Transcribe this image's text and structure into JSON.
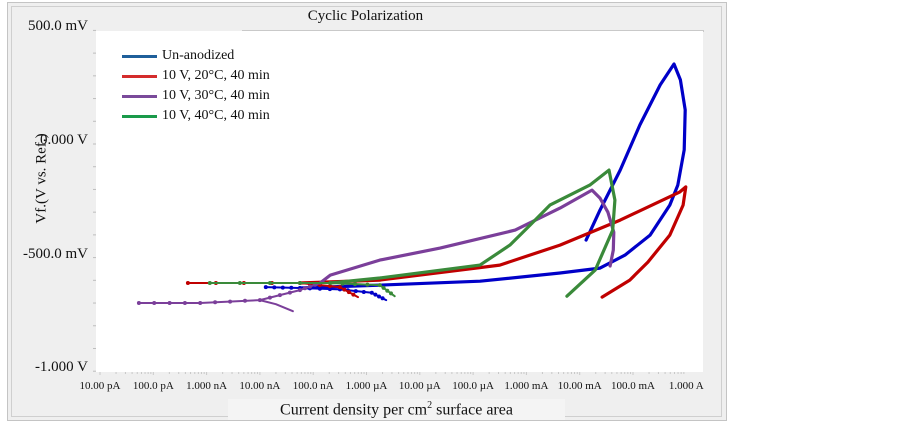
{
  "chart_data": {
    "type": "line",
    "title": "Cyclic Polarization",
    "xlabel": "Current density per cm² surface area",
    "xlabel_main": "Current density per cm",
    "xlabel_sup": "2",
    "xlabel_rest": " surface area",
    "ylabel": "Vf.(V vs. Ref.)",
    "xscale": "log",
    "x_units": "A (log10)",
    "y_units": "mV",
    "xlim_log10": [
      -11,
      0
    ],
    "ylim": [
      -1000,
      500
    ],
    "x_ticks": [
      {
        "log10": -11,
        "label": "10.00 pA"
      },
      {
        "log10": -10,
        "label": "100.0 pA"
      },
      {
        "log10": -9,
        "label": "1.000 nA"
      },
      {
        "log10": -8,
        "label": "10.00 nA"
      },
      {
        "log10": -7,
        "label": "100.0 nA"
      },
      {
        "log10": -6,
        "label": "1.000 µA"
      },
      {
        "log10": -5,
        "label": "10.00 µA"
      },
      {
        "log10": -4,
        "label": "100.0 µA"
      },
      {
        "log10": -3,
        "label": "1.000 mA"
      },
      {
        "log10": -2,
        "label": "10.00 mA"
      },
      {
        "log10": -1,
        "label": "100.0 mA"
      },
      {
        "log10": 0,
        "label": "1.000 A"
      }
    ],
    "y_ticks": [
      {
        "value": 500,
        "label": "500.0 mV"
      },
      {
        "value": 0,
        "label": "0.000 V"
      },
      {
        "value": -500,
        "label": "-500.0 mV"
      },
      {
        "value": -1000,
        "label": "-1.000 V"
      }
    ],
    "legend_position": "top-left",
    "grid": false,
    "series": [
      {
        "name": "Un-anodized",
        "color": "#0000c8",
        "legend_color": "#1f5f9a",
        "segments": [
          [
            [
              -7.89,
              -630
            ],
            [
              -7.25,
              -634
            ],
            [
              -6.5,
              -640
            ],
            [
              -5.9,
              -655
            ],
            [
              -5.63,
              -687
            ]
          ],
          [
            [
              -7.25,
              -634
            ],
            [
              -5.75,
              -621
            ],
            [
              -3.87,
              -604
            ],
            [
              -2.37,
              -568
            ],
            [
              -1.62,
              -546
            ],
            [
              -1.15,
              -489
            ],
            [
              -0.68,
              -401
            ],
            [
              -0.31,
              -269
            ],
            [
              -0.16,
              -181
            ],
            [
              -0.04,
              -26
            ],
            [
              -0.02,
              150
            ],
            [
              -0.11,
              282
            ],
            [
              -0.23,
              352
            ],
            [
              -0.49,
              260
            ],
            [
              -0.87,
              84
            ],
            [
              -1.24,
              -115
            ],
            [
              -1.62,
              -291
            ],
            [
              -1.88,
              -423
            ]
          ]
        ]
      },
      {
        "name": "10 V, 20°C, 40 min",
        "color": "#c00000",
        "legend_color": "#d42c2c",
        "segments": [
          [
            [
              -9.35,
              -612
            ],
            [
              -7.25,
              -612
            ],
            [
              -6.5,
              -630
            ],
            [
              -6.16,
              -674
            ]
          ],
          [
            [
              -7.25,
              -612
            ],
            [
              -5.75,
              -599
            ],
            [
              -3.5,
              -533
            ],
            [
              -2.37,
              -445
            ],
            [
              -1.24,
              -335
            ],
            [
              -0.12,
              -211
            ],
            [
              -0.01,
              -189
            ],
            [
              -0.06,
              -269
            ],
            [
              -0.31,
              -401
            ],
            [
              -0.72,
              -520
            ],
            [
              -1.06,
              -599
            ],
            [
              -1.58,
              -674
            ]
          ]
        ]
      },
      {
        "name": "10 V, 30°C, 40 min",
        "color": "#7b3f9a",
        "legend_color": "#7a4a9a",
        "segments": [
          [
            [
              -10.27,
              -700
            ],
            [
              -9.12,
              -700
            ],
            [
              -8.0,
              -687
            ],
            [
              -7.25,
              -643
            ],
            [
              -6.87,
              -612
            ]
          ],
          [
            [
              -8.0,
              -687
            ],
            [
              -7.7,
              -705
            ],
            [
              -7.38,
              -736
            ]
          ],
          [
            [
              -6.87,
              -612
            ],
            [
              -6.68,
              -577
            ],
            [
              -5.75,
              -511
            ],
            [
              -4.62,
              -458
            ],
            [
              -3.21,
              -379
            ],
            [
              -2.37,
              -282
            ],
            [
              -1.77,
              -203
            ],
            [
              -1.62,
              -238
            ],
            [
              -1.47,
              -300
            ],
            [
              -1.36,
              -388
            ],
            [
              -1.37,
              -467
            ],
            [
              -1.43,
              -537
            ]
          ]
        ]
      },
      {
        "name": "10 V, 40°C, 40 min",
        "color": "#3a8a3a",
        "legend_color": "#1a9a4a",
        "segments": [
          [
            [
              -8.94,
              -612
            ],
            [
              -6.68,
              -612
            ],
            [
              -5.75,
              -621
            ],
            [
              -5.47,
              -670
            ]
          ],
          [
            [
              -6.68,
              -612
            ],
            [
              -5.75,
              -590
            ],
            [
              -3.87,
              -533
            ],
            [
              -3.31,
              -445
            ],
            [
              -2.93,
              -357
            ],
            [
              -2.56,
              -269
            ],
            [
              -1.81,
              -181
            ],
            [
              -1.45,
              -115
            ],
            [
              -1.34,
              -247
            ],
            [
              -1.38,
              -379
            ],
            [
              -1.71,
              -555
            ],
            [
              -2.24,
              -670
            ]
          ]
        ]
      }
    ]
  }
}
